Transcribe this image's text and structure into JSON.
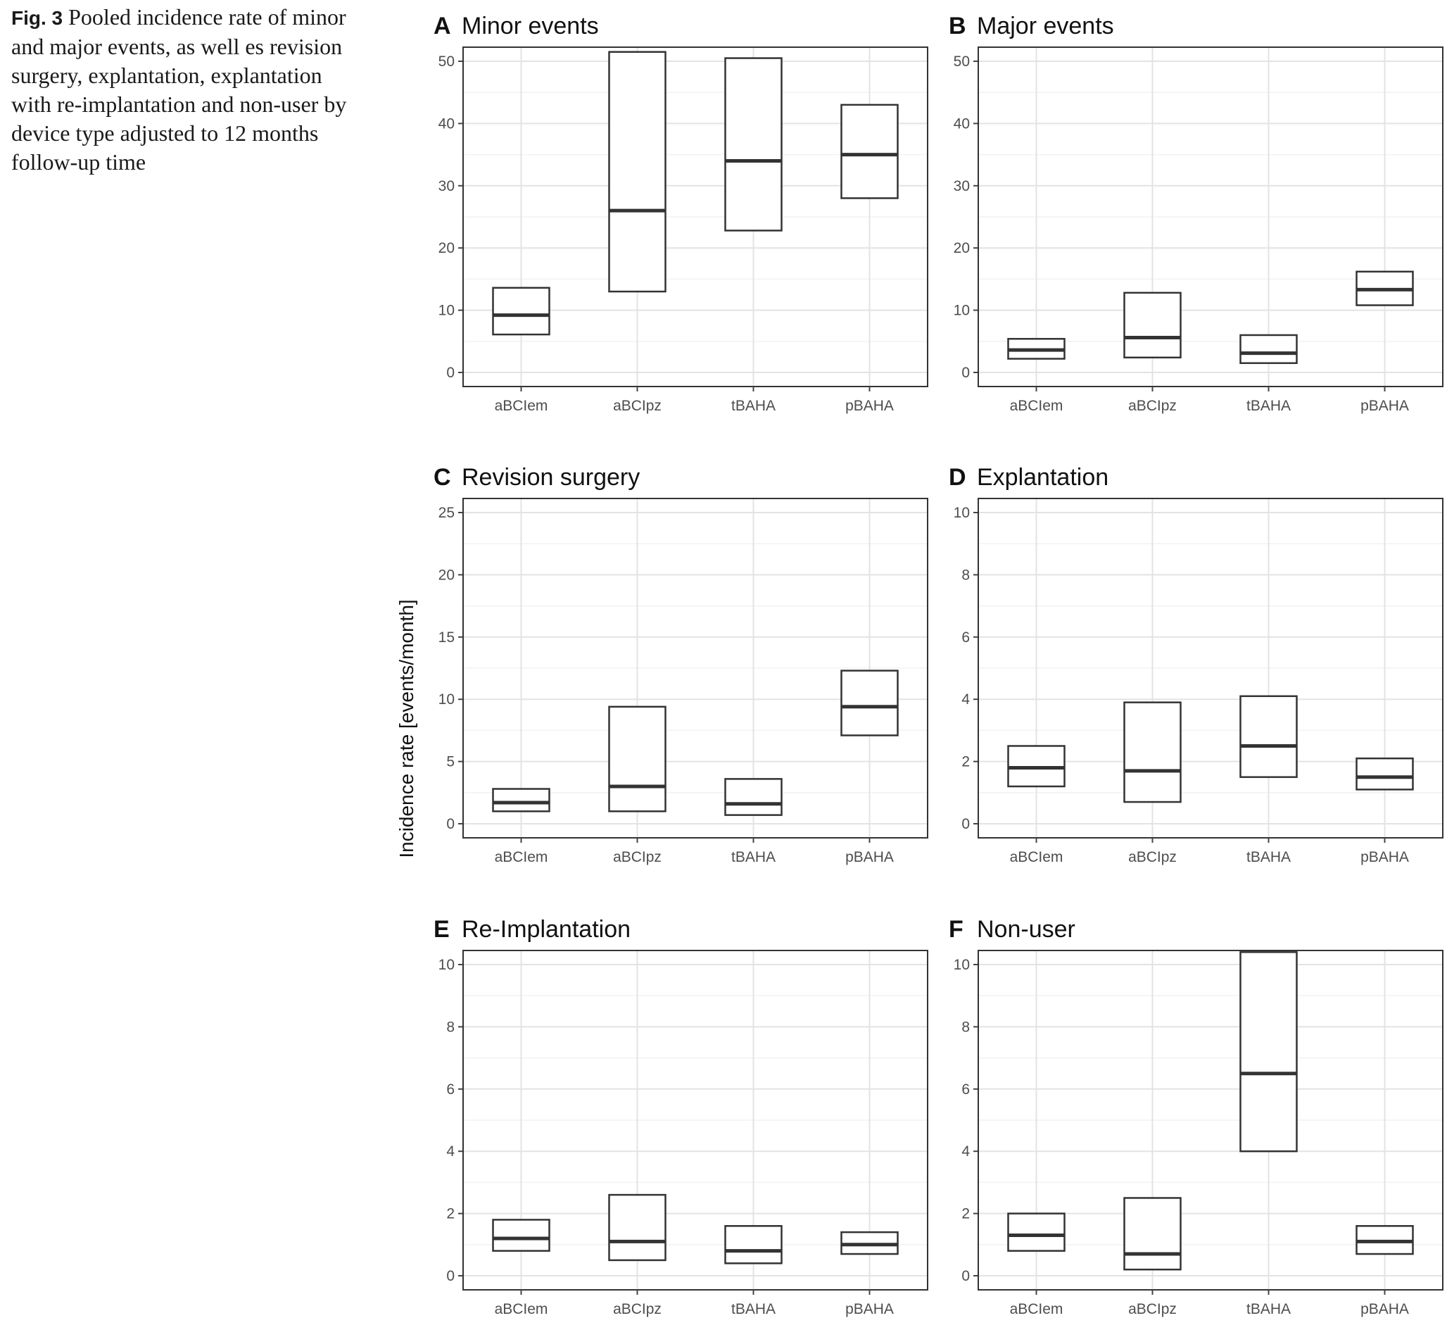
{
  "figure": {
    "label": "Fig. 3",
    "caption": "Pooled incidence rate of minor and major events, as well es revision surgery, explantation, explantation with re-implantation and non-user by device type adjusted to 12 months follow-up time"
  },
  "chart_data": {
    "type": "boxplot",
    "ylabel": "Incidence rate [events/month]",
    "categories": [
      "aBCIem",
      "aBCIpz",
      "tBAHA",
      "pBAHA"
    ],
    "panels": [
      {
        "letter": "A",
        "title": "Minor events",
        "ylim": [
          0,
          50
        ],
        "yticks": [
          0,
          10,
          20,
          30,
          40,
          50
        ],
        "boxes": [
          {
            "category": "aBCIem",
            "low": 6.1,
            "median": 9.2,
            "high": 13.6
          },
          {
            "category": "aBCIpz",
            "low": 13.0,
            "median": 26.0,
            "high": 51.5
          },
          {
            "category": "tBAHA",
            "low": 22.8,
            "median": 34.0,
            "high": 50.5
          },
          {
            "category": "pBAHA",
            "low": 28.0,
            "median": 35.0,
            "high": 43.0
          }
        ]
      },
      {
        "letter": "B",
        "title": "Major events",
        "ylim": [
          0,
          50
        ],
        "yticks": [
          0,
          10,
          20,
          30,
          40,
          50
        ],
        "boxes": [
          {
            "category": "aBCIem",
            "low": 2.2,
            "median": 3.6,
            "high": 5.4
          },
          {
            "category": "aBCIpz",
            "low": 2.4,
            "median": 5.6,
            "high": 12.8
          },
          {
            "category": "tBAHA",
            "low": 1.5,
            "median": 3.1,
            "high": 6.0
          },
          {
            "category": "pBAHA",
            "low": 10.8,
            "median": 13.3,
            "high": 16.2
          }
        ]
      },
      {
        "letter": "C",
        "title": "Revision surgery",
        "ylim": [
          0,
          25
        ],
        "yticks": [
          0,
          5,
          10,
          15,
          20,
          25
        ],
        "boxes": [
          {
            "category": "aBCIem",
            "low": 1.0,
            "median": 1.7,
            "high": 2.8
          },
          {
            "category": "aBCIpz",
            "low": 1.0,
            "median": 3.0,
            "high": 9.4
          },
          {
            "category": "tBAHA",
            "low": 0.7,
            "median": 1.6,
            "high": 3.6
          },
          {
            "category": "pBAHA",
            "low": 7.1,
            "median": 9.4,
            "high": 12.3
          }
        ]
      },
      {
        "letter": "D",
        "title": "Explantation",
        "ylim": [
          0,
          10
        ],
        "yticks": [
          0,
          2,
          4,
          6,
          8,
          10
        ],
        "boxes": [
          {
            "category": "aBCIem",
            "low": 1.2,
            "median": 1.8,
            "high": 2.5
          },
          {
            "category": "aBCIpz",
            "low": 0.7,
            "median": 1.7,
            "high": 3.9
          },
          {
            "category": "tBAHA",
            "low": 1.5,
            "median": 2.5,
            "high": 4.1
          },
          {
            "category": "pBAHA",
            "low": 1.1,
            "median": 1.5,
            "high": 2.1
          }
        ]
      },
      {
        "letter": "E",
        "title": "Re-Implantation",
        "ylim": [
          0,
          10
        ],
        "yticks": [
          0,
          2,
          4,
          6,
          8,
          10
        ],
        "boxes": [
          {
            "category": "aBCIem",
            "low": 0.8,
            "median": 1.2,
            "high": 1.8
          },
          {
            "category": "aBCIpz",
            "low": 0.5,
            "median": 1.1,
            "high": 2.6
          },
          {
            "category": "tBAHA",
            "low": 0.4,
            "median": 0.8,
            "high": 1.6
          },
          {
            "category": "pBAHA",
            "low": 0.7,
            "median": 1.0,
            "high": 1.4
          }
        ]
      },
      {
        "letter": "F",
        "title": "Non-user",
        "ylim": [
          0,
          10
        ],
        "yticks": [
          0,
          2,
          4,
          6,
          8,
          10
        ],
        "boxes": [
          {
            "category": "aBCIem",
            "low": 0.8,
            "median": 1.3,
            "high": 2.0
          },
          {
            "category": "aBCIpz",
            "low": 0.2,
            "median": 0.7,
            "high": 2.5
          },
          {
            "category": "tBAHA",
            "low": 4.0,
            "median": 6.5,
            "high": 10.4
          },
          {
            "category": "pBAHA",
            "low": 0.7,
            "median": 1.1,
            "high": 1.6
          }
        ]
      }
    ],
    "grid": true
  }
}
